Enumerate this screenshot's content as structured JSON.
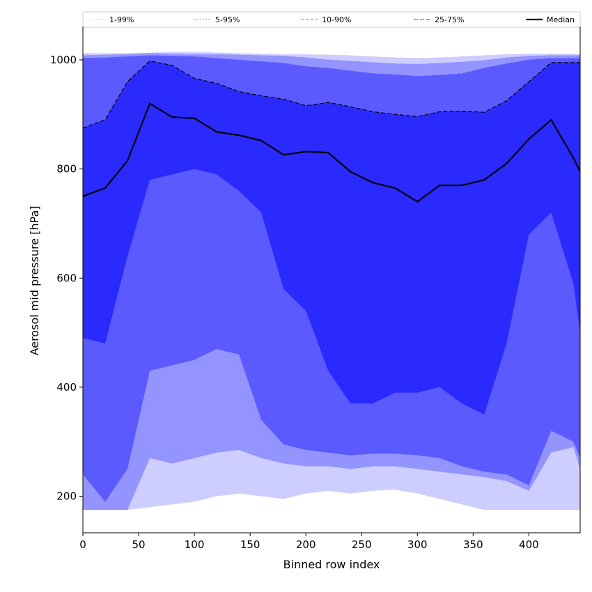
{
  "chart_data": {
    "type": "area",
    "xlabel": "Binned row index",
    "ylabel": "Aerosol mid pressure [hPa]",
    "xlim": [
      0,
      446
    ],
    "ylim": [
      133,
      1060
    ],
    "x_ticks": [
      0,
      50,
      100,
      150,
      200,
      250,
      300,
      350,
      400
    ],
    "y_ticks": [
      200,
      400,
      600,
      800,
      1000
    ],
    "grid": false,
    "legend_position": "top",
    "x": [
      0,
      20,
      40,
      60,
      80,
      100,
      120,
      140,
      160,
      180,
      200,
      220,
      240,
      260,
      280,
      300,
      320,
      340,
      360,
      380,
      400,
      420,
      440,
      446
    ],
    "bands": [
      {
        "name": "1-99%",
        "color": "#cdcdff",
        "line_color": "#b0b0ff",
        "low": [
          175,
          175,
          175,
          180,
          185,
          190,
          200,
          205,
          200,
          195,
          205,
          210,
          205,
          210,
          212,
          205,
          195,
          185,
          175,
          175,
          175,
          175,
          175,
          175
        ],
        "high": [
          1012,
          1012,
          1012,
          1013,
          1014,
          1014,
          1013,
          1012,
          1011,
          1010,
          1010,
          1009,
          1008,
          1006,
          1004,
          1003,
          1004,
          1006,
          1008,
          1010,
          1011,
          1011,
          1011,
          1011
        ]
      },
      {
        "name": "5-95%",
        "color": "#9494ff",
        "line_color": "#8080ff",
        "low": [
          175,
          175,
          175,
          270,
          260,
          270,
          280,
          285,
          270,
          260,
          255,
          255,
          250,
          255,
          255,
          250,
          245,
          240,
          235,
          228,
          210,
          280,
          290,
          250
        ],
        "high": [
          1008,
          1009,
          1010,
          1012,
          1011,
          1010,
          1010,
          1009,
          1008,
          1007,
          1004,
          1000,
          998,
          995,
          993,
          992,
          994,
          996,
          999,
          1004,
          1007,
          1008,
          1008,
          1008
        ]
      },
      {
        "name": "10-90%",
        "color": "#5a5aff",
        "line_color": "#6060ff",
        "low": [
          240,
          190,
          250,
          430,
          440,
          450,
          470,
          460,
          340,
          295,
          285,
          280,
          275,
          278,
          278,
          275,
          270,
          255,
          245,
          240,
          220,
          320,
          300,
          270
        ],
        "high": [
          1003,
          1004,
          1006,
          1008,
          1007,
          1006,
          1003,
          1000,
          997,
          994,
          988,
          985,
          980,
          975,
          973,
          970,
          972,
          975,
          985,
          993,
          1000,
          1003,
          1003,
          1003
        ]
      },
      {
        "name": "25-75%",
        "color": "#2a2aff",
        "line_color": "#0000c0",
        "low": [
          490,
          480,
          640,
          780,
          790,
          800,
          790,
          760,
          720,
          580,
          540,
          430,
          370,
          370,
          390,
          390,
          400,
          370,
          350,
          480,
          680,
          720,
          590,
          500
        ],
        "high": [
          875,
          890,
          960,
          998,
          990,
          966,
          957,
          942,
          934,
          928,
          916,
          922,
          914,
          905,
          900,
          896,
          905,
          906,
          904,
          925,
          960,
          995,
          995,
          995
        ]
      }
    ],
    "series": [
      {
        "name": "Median",
        "color": "#000000",
        "values": [
          750,
          765,
          815,
          920,
          895,
          893,
          868,
          862,
          852,
          826,
          832,
          830,
          795,
          775,
          765,
          740,
          770,
          770,
          780,
          810,
          855,
          890,
          820,
          795
        ]
      }
    ]
  }
}
